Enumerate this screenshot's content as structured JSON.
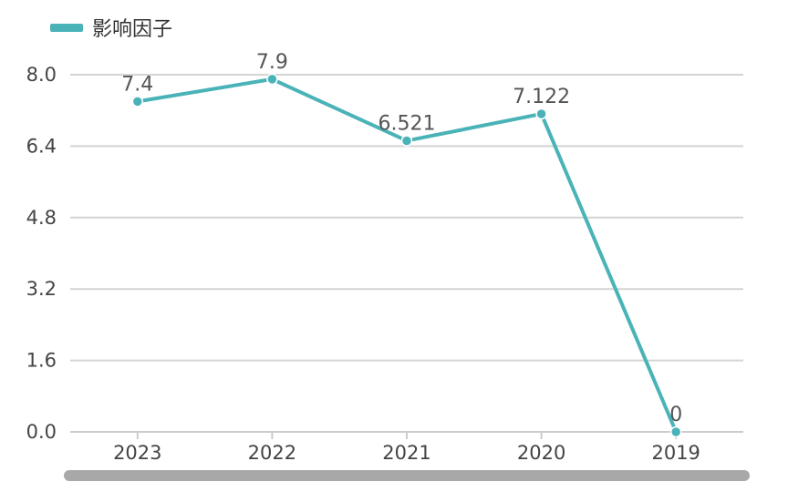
{
  "chart_data": {
    "type": "line",
    "categories": [
      "2023",
      "2022",
      "2021",
      "2020",
      "2019"
    ],
    "series": [
      {
        "name": "影响因子",
        "values": [
          7.4,
          7.9,
          6.521,
          7.122,
          0
        ],
        "labels": [
          "7.4",
          "7.9",
          "6.521",
          "7.122",
          "0"
        ]
      }
    ],
    "title": "",
    "xlabel": "",
    "ylabel": "",
    "ylim": [
      0,
      8.0
    ],
    "yticks": [
      "0.0",
      "1.6",
      "3.2",
      "4.8",
      "6.4",
      "8.0"
    ],
    "grid": true,
    "legend_position": "top-left"
  },
  "colors": {
    "series": "#4ab3b8",
    "grid": "#d4d4d4",
    "bottom_bar": "#a8a8a8"
  }
}
